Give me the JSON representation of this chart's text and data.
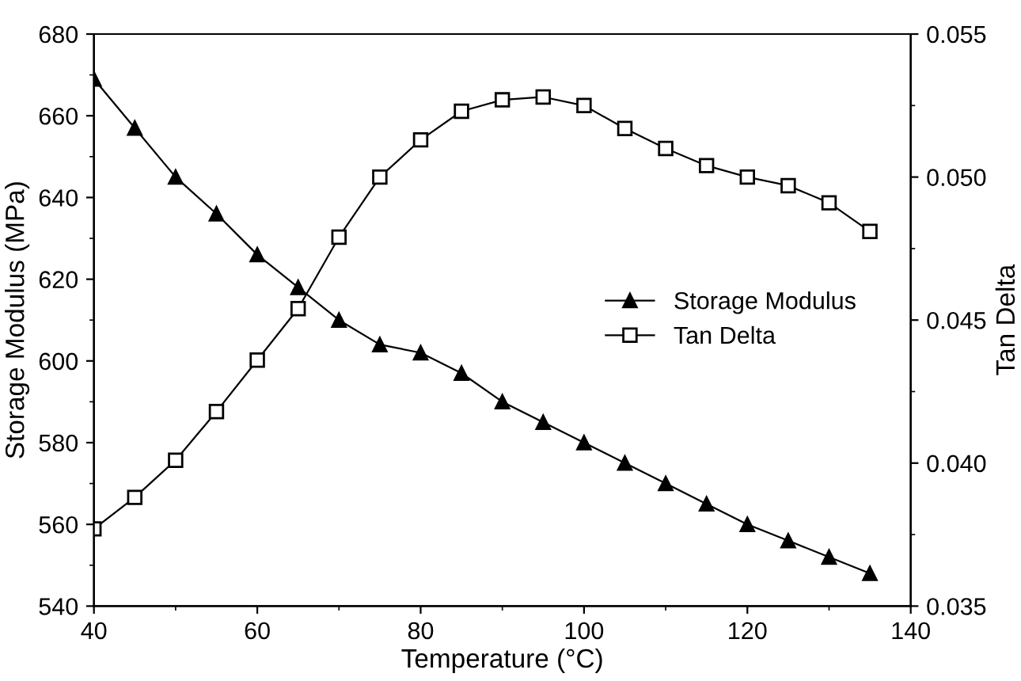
{
  "chart_data": {
    "type": "line",
    "xlabel": "Temperature (°C)",
    "ylabel": "Storage Modulus (MPa)",
    "y2label": "Tan Delta",
    "x": [
      40,
      45,
      50,
      55,
      60,
      65,
      70,
      75,
      80,
      85,
      90,
      95,
      100,
      105,
      110,
      115,
      120,
      125,
      130,
      135
    ],
    "series": [
      {
        "name": "Storage Modulus",
        "color": "#000000",
        "marker": "triangle",
        "values": [
          669,
          657,
          645,
          636,
          626,
          618,
          610,
          604,
          602,
          597,
          590,
          585,
          580,
          575,
          570,
          565,
          560,
          556,
          552,
          548
        ]
      },
      {
        "name": "Tan Delta",
        "color": "#000000",
        "marker": "square",
        "axis": "y2",
        "values": [
          0.0377,
          0.0388,
          0.0401,
          0.0418,
          0.0436,
          0.0454,
          0.0479,
          0.05,
          0.0513,
          0.0523,
          0.0527,
          0.0528,
          0.0525,
          0.0517,
          0.051,
          0.0504,
          0.05,
          0.0497,
          0.0491,
          0.0481
        ]
      }
    ],
    "xlim": [
      40,
      140
    ],
    "xticks": [
      40,
      60,
      80,
      100,
      120,
      140
    ],
    "ylim": [
      540,
      680
    ],
    "yticks": [
      540,
      560,
      580,
      600,
      620,
      640,
      660,
      680
    ],
    "y2lim": [
      0.035,
      0.055
    ],
    "y2ticks": [
      {
        "value": 0.035,
        "label": "0.035"
      },
      {
        "value": 0.04,
        "label": "0.040"
      },
      {
        "value": 0.045,
        "label": "0.045"
      },
      {
        "value": 0.05,
        "label": "0.050"
      },
      {
        "value": 0.055,
        "label": "0.055"
      }
    ],
    "grid": false,
    "legend": "center right",
    "line_style": "solid"
  }
}
